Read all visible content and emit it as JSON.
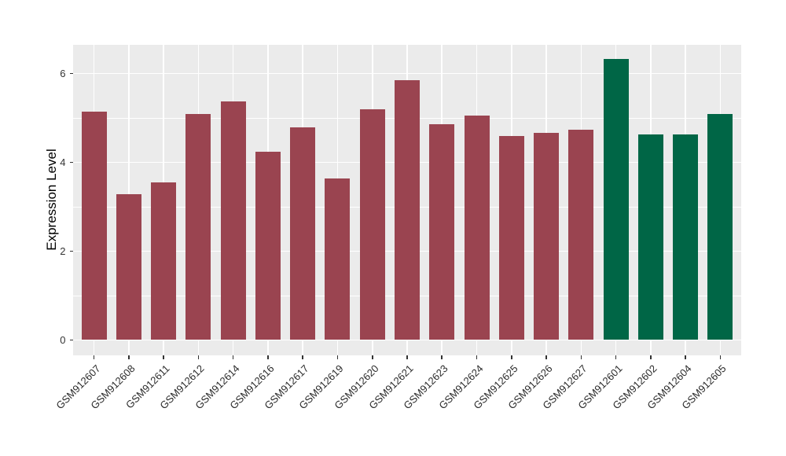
{
  "figure": {
    "background": "#ffffff",
    "panel_background": "#ebebeb",
    "gridline_color": "#ffffff",
    "axis_text_color": "#333333",
    "tick_mark_color": "#333333"
  },
  "chart_data": {
    "type": "bar",
    "title": "",
    "xlabel": "",
    "ylabel": "Expression Level",
    "legend": "none",
    "grid": true,
    "categories": [
      "GSM912607",
      "GSM912608",
      "GSM912611",
      "GSM912612",
      "GSM912614",
      "GSM912616",
      "GSM912617",
      "GSM912619",
      "GSM912620",
      "GSM912621",
      "GSM912623",
      "GSM912624",
      "GSM912625",
      "GSM912626",
      "GSM912627",
      "GSM912601",
      "GSM912602",
      "GSM912604",
      "GSM912605"
    ],
    "values": [
      5.14,
      3.29,
      3.55,
      5.09,
      5.37,
      4.24,
      4.79,
      3.64,
      5.19,
      5.85,
      4.85,
      5.05,
      4.59,
      4.66,
      4.73,
      6.33,
      4.63,
      4.63,
      5.09
    ],
    "colors": [
      "#9a4450",
      "#9a4450",
      "#9a4450",
      "#9a4450",
      "#9a4450",
      "#9a4450",
      "#9a4450",
      "#9a4450",
      "#9a4450",
      "#9a4450",
      "#9a4450",
      "#9a4450",
      "#9a4450",
      "#9a4450",
      "#9a4450",
      "#006646",
      "#006646",
      "#006646",
      "#006646"
    ],
    "group_colors": {
      "group_1": "#9a4450",
      "group_2": "#006646"
    },
    "yticks": [
      0,
      2,
      4,
      6
    ],
    "ytick_labels": [
      "0",
      "2",
      "4",
      "6"
    ],
    "minor_gridlines": [
      1,
      3,
      5
    ],
    "ylim": [
      -0.35,
      6.65
    ]
  }
}
